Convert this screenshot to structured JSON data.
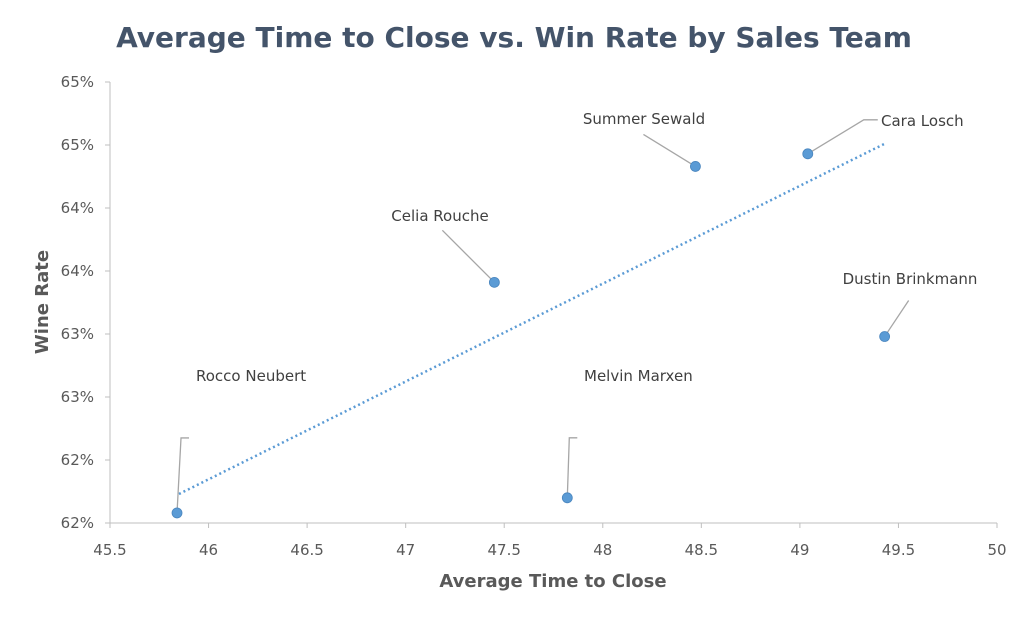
{
  "chart_data": {
    "type": "scatter",
    "title": "Average Time to Close vs. Win Rate by Sales Team",
    "xlabel": "Average Time to Close",
    "ylabel": "Wine Rate",
    "xlim": [
      45.5,
      50
    ],
    "ylim": [
      61.5,
      65.0
    ],
    "x_ticks": [
      45.5,
      46,
      46.5,
      47,
      47.5,
      48,
      48.5,
      49,
      49.5,
      50
    ],
    "x_tick_labels": [
      "45.5",
      "46",
      "46.5",
      "47",
      "47.5",
      "48",
      "48.5",
      "49",
      "49.5",
      "50"
    ],
    "y_ticks": [
      61.5,
      62.0,
      62.5,
      63.0,
      63.5,
      64.0,
      64.5,
      65.0
    ],
    "y_tick_labels": [
      "62%",
      "62%",
      "63%",
      "63%",
      "64%",
      "64%",
      "65%",
      "65%"
    ],
    "grid": false,
    "legend": "none",
    "trendline": {
      "type": "linear",
      "style": "dotted",
      "from": [
        45.85,
        61.73
      ],
      "to": [
        49.43,
        64.51
      ]
    },
    "points": [
      {
        "name": "Rocco Neubert",
        "x": 45.84,
        "y": 61.58
      },
      {
        "name": "Celia Rouche",
        "x": 47.45,
        "y": 63.41
      },
      {
        "name": "Melvin Marxen",
        "x": 47.82,
        "y": 61.7
      },
      {
        "name": "Summer Sewald",
        "x": 48.47,
        "y": 64.33
      },
      {
        "name": "Cara Losch",
        "x": 49.04,
        "y": 64.43
      },
      {
        "name": "Dustin Brinkmann",
        "x": 49.43,
        "y": 62.98
      }
    ],
    "colors": {
      "marker": "#5b9bd5",
      "trendline": "#5b9bd5",
      "leader": "#a6a6a6",
      "axis": "#bfbfbf"
    }
  }
}
